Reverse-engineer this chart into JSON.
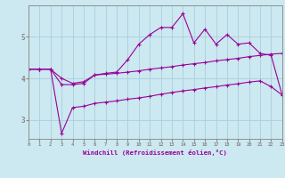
{
  "background_color": "#cce8f0",
  "grid_color": "#a8d0dc",
  "line_color": "#990099",
  "xlim": [
    0,
    23
  ],
  "ylim": [
    2.55,
    5.75
  ],
  "xticks": [
    0,
    1,
    2,
    3,
    4,
    5,
    6,
    7,
    8,
    9,
    10,
    11,
    12,
    13,
    14,
    15,
    16,
    17,
    18,
    19,
    20,
    21,
    22,
    23
  ],
  "yticks": [
    3,
    4,
    5
  ],
  "xlabel": "Windchill (Refroidissement éolien,°C)",
  "x": [
    0,
    1,
    2,
    3,
    4,
    5,
    6,
    7,
    8,
    9,
    10,
    11,
    12,
    13,
    14,
    15,
    16,
    17,
    18,
    19,
    20,
    21,
    22,
    23
  ],
  "y_top": [
    4.22,
    4.22,
    4.22,
    3.85,
    3.85,
    3.88,
    4.08,
    4.12,
    4.15,
    4.45,
    4.82,
    5.05,
    5.22,
    5.22,
    5.55,
    4.85,
    5.18,
    4.82,
    5.05,
    4.82,
    4.85,
    4.6,
    4.55,
    3.6
  ],
  "y_mid": [
    4.22,
    4.22,
    4.22,
    4.0,
    3.88,
    3.92,
    4.08,
    4.1,
    4.12,
    4.15,
    4.18,
    4.22,
    4.25,
    4.28,
    4.32,
    4.35,
    4.38,
    4.42,
    4.45,
    4.48,
    4.52,
    4.55,
    4.58,
    4.6
  ],
  "y_bot": [
    4.22,
    4.22,
    4.22,
    2.68,
    3.3,
    3.33,
    3.4,
    3.43,
    3.46,
    3.5,
    3.53,
    3.57,
    3.62,
    3.66,
    3.7,
    3.73,
    3.77,
    3.8,
    3.84,
    3.87,
    3.91,
    3.94,
    3.8,
    3.6
  ]
}
